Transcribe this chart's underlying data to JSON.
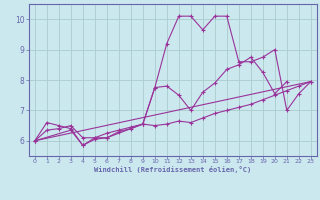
{
  "xlabel": "Windchill (Refroidissement éolien,°C)",
  "bg_color": "#cce8ef",
  "grid_color": "#aacccc",
  "line_color": "#993399",
  "axis_color": "#6666aa",
  "xlim": [
    -0.5,
    23.5
  ],
  "ylim": [
    5.5,
    10.5
  ],
  "yticks": [
    6,
    7,
    8,
    9,
    10
  ],
  "xticks": [
    0,
    1,
    2,
    3,
    4,
    5,
    6,
    7,
    8,
    9,
    10,
    11,
    12,
    13,
    14,
    15,
    16,
    17,
    18,
    19,
    20,
    21,
    22,
    23
  ],
  "series1": [
    [
      0,
      6.0
    ],
    [
      1,
      6.6
    ],
    [
      2,
      6.5
    ],
    [
      3,
      6.4
    ],
    [
      4,
      5.85
    ],
    [
      5,
      6.05
    ],
    [
      6,
      6.1
    ],
    [
      7,
      6.3
    ],
    [
      8,
      6.4
    ],
    [
      9,
      6.55
    ],
    [
      10,
      7.75
    ],
    [
      11,
      9.2
    ],
    [
      12,
      10.1
    ],
    [
      13,
      10.1
    ],
    [
      14,
      9.65
    ],
    [
      15,
      10.1
    ],
    [
      16,
      10.1
    ],
    [
      17,
      8.6
    ],
    [
      18,
      8.6
    ],
    [
      19,
      8.75
    ],
    [
      20,
      9.0
    ],
    [
      21,
      7.0
    ],
    [
      22,
      7.55
    ],
    [
      23,
      7.95
    ]
  ],
  "series2": [
    [
      0,
      6.0
    ],
    [
      1,
      6.35
    ],
    [
      2,
      6.4
    ],
    [
      3,
      6.5
    ],
    [
      4,
      6.1
    ],
    [
      5,
      6.1
    ],
    [
      6,
      6.25
    ],
    [
      7,
      6.35
    ],
    [
      8,
      6.45
    ],
    [
      9,
      6.55
    ],
    [
      10,
      7.75
    ],
    [
      11,
      7.8
    ],
    [
      12,
      7.5
    ],
    [
      13,
      7.0
    ],
    [
      14,
      7.6
    ],
    [
      15,
      7.9
    ],
    [
      16,
      8.35
    ],
    [
      17,
      8.5
    ],
    [
      18,
      8.75
    ],
    [
      19,
      8.25
    ],
    [
      20,
      7.55
    ],
    [
      21,
      7.95
    ]
  ],
  "series3": [
    [
      0,
      6.0
    ],
    [
      23,
      7.95
    ]
  ],
  "series4": [
    [
      0,
      6.0
    ],
    [
      3,
      6.35
    ],
    [
      4,
      5.85
    ],
    [
      5,
      6.1
    ],
    [
      6,
      6.1
    ],
    [
      9,
      6.55
    ],
    [
      10,
      6.5
    ],
    [
      11,
      6.55
    ],
    [
      12,
      6.65
    ],
    [
      13,
      6.6
    ],
    [
      14,
      6.75
    ],
    [
      15,
      6.9
    ],
    [
      16,
      7.0
    ],
    [
      17,
      7.1
    ],
    [
      18,
      7.2
    ],
    [
      19,
      7.35
    ],
    [
      20,
      7.5
    ],
    [
      21,
      7.65
    ],
    [
      22,
      7.8
    ],
    [
      23,
      7.95
    ]
  ]
}
